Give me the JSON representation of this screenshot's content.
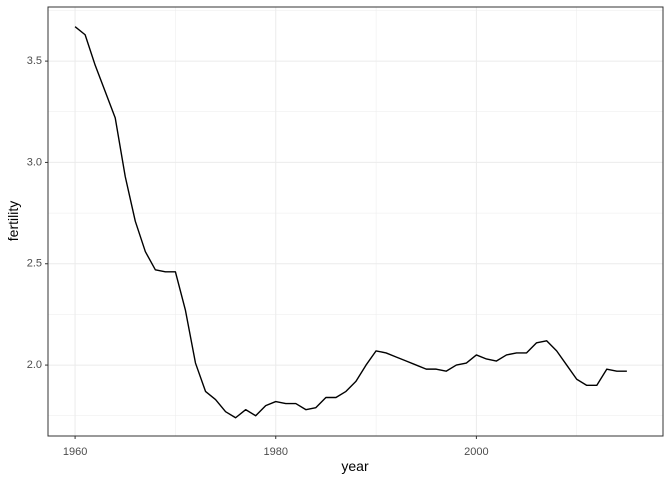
{
  "chart_data": {
    "type": "line",
    "x_label": "year",
    "y_label": "fertility",
    "x": [
      1960,
      1961,
      1962,
      1963,
      1964,
      1965,
      1966,
      1967,
      1968,
      1969,
      1970,
      1971,
      1972,
      1973,
      1974,
      1975,
      1976,
      1977,
      1978,
      1979,
      1980,
      1981,
      1982,
      1983,
      1984,
      1985,
      1986,
      1987,
      1988,
      1989,
      1990,
      1991,
      1992,
      1993,
      1994,
      1995,
      1996,
      1997,
      1998,
      1999,
      2000,
      2001,
      2002,
      2003,
      2004,
      2005,
      2006,
      2007,
      2008,
      2009,
      2010,
      2011,
      2012,
      2013,
      2014,
      2015
    ],
    "y": [
      3.67,
      3.63,
      3.48,
      3.35,
      3.22,
      2.93,
      2.71,
      2.56,
      2.47,
      2.46,
      2.46,
      2.27,
      2.01,
      1.87,
      1.83,
      1.77,
      1.74,
      1.78,
      1.75,
      1.8,
      1.82,
      1.81,
      1.81,
      1.78,
      1.79,
      1.84,
      1.84,
      1.87,
      1.92,
      2.0,
      2.07,
      2.06,
      2.04,
      2.02,
      2.0,
      1.98,
      1.98,
      1.97,
      2.0,
      2.01,
      2.05,
      2.03,
      2.02,
      2.05,
      2.06,
      2.06,
      2.11,
      2.12,
      2.07,
      2.0,
      1.93,
      1.9,
      1.9,
      1.98,
      1.97,
      1.97
    ],
    "color": "#000000",
    "xlim": [
      1957.3,
      2018.6
    ],
    "xticks": [
      1960,
      1980,
      2000
    ],
    "ylim": [
      1.65,
      3.767
    ],
    "yticks": [
      {
        "value": 2.0,
        "label": "2.0"
      },
      {
        "value": 2.5,
        "label": "2.5"
      },
      {
        "value": 3.0,
        "label": "3.0"
      },
      {
        "value": 3.5,
        "label": "3.5"
      }
    ],
    "grid": true,
    "minor_grid": true
  }
}
